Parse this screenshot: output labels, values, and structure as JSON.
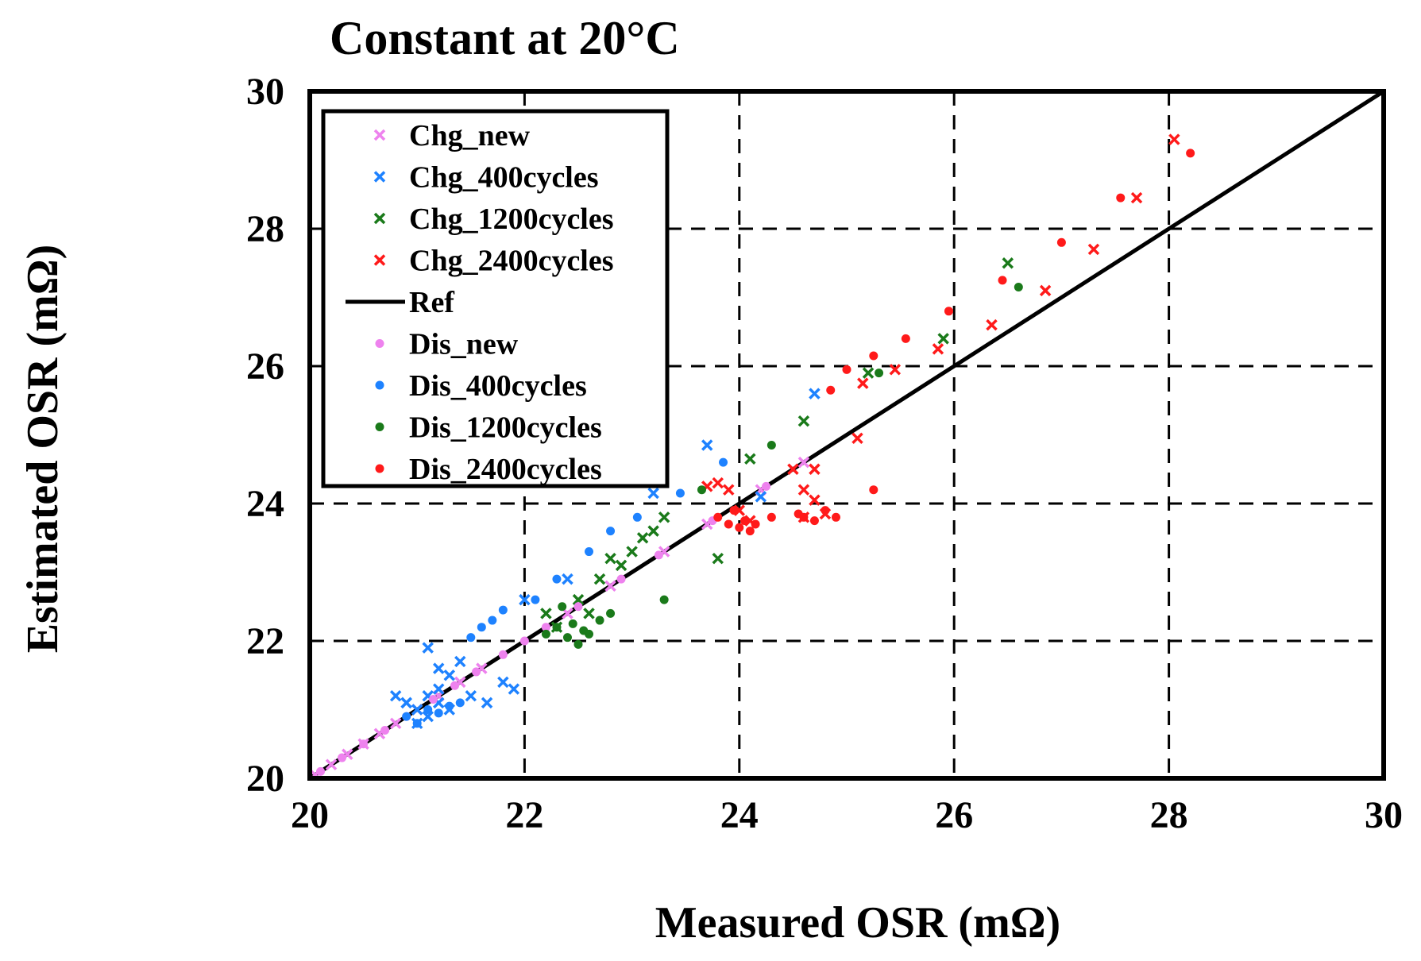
{
  "chart_data": {
    "type": "scatter",
    "title": "Constant at 20°C",
    "xlabel": "Measured OSR (mΩ)",
    "ylabel": "Estimated OSR (mΩ)",
    "xlim": [
      20,
      30
    ],
    "ylim": [
      20,
      30
    ],
    "xticks": [
      20,
      22,
      24,
      26,
      28,
      30
    ],
    "yticks": [
      20,
      22,
      24,
      26,
      28,
      30
    ],
    "grid": true,
    "legend_position": "top-left",
    "colors": {
      "new": "#ee82ee",
      "c400": "#1e82ff",
      "c1200": "#1a7a1a",
      "c2400": "#ff1a1a",
      "ref": "#000000"
    },
    "series": [
      {
        "name": "Chg_new",
        "marker": "x",
        "color": "#ee82ee",
        "x": [
          20.05,
          20.2,
          20.35,
          20.5,
          20.65,
          20.8,
          21.0,
          21.2,
          21.4,
          21.6,
          22.4,
          22.8,
          23.3,
          23.7,
          24.2,
          24.6
        ],
        "y": [
          20.05,
          20.2,
          20.35,
          20.5,
          20.65,
          20.8,
          21.0,
          21.2,
          21.4,
          21.6,
          22.4,
          22.8,
          23.3,
          23.7,
          24.2,
          24.6
        ]
      },
      {
        "name": "Chg_400cycles",
        "marker": "x",
        "color": "#1e82ff",
        "x": [
          20.8,
          20.9,
          21.0,
          21.1,
          21.2,
          21.3,
          21.0,
          21.1,
          21.2,
          20.9,
          21.3,
          21.4,
          21.5,
          21.65,
          21.8,
          21.9,
          22.0,
          22.4,
          23.2,
          23.7,
          24.2,
          24.7,
          21.1,
          21.2
        ],
        "y": [
          21.2,
          21.1,
          21.0,
          21.2,
          21.3,
          21.0,
          20.8,
          20.9,
          21.1,
          21.1,
          21.5,
          21.7,
          21.2,
          21.1,
          21.4,
          21.3,
          22.6,
          22.9,
          24.15,
          24.85,
          24.1,
          25.6,
          21.9,
          21.6
        ]
      },
      {
        "name": "Chg_1200cycles",
        "marker": "x",
        "color": "#1a7a1a",
        "x": [
          22.2,
          22.3,
          22.5,
          22.6,
          22.7,
          22.8,
          22.9,
          23.0,
          23.1,
          23.2,
          23.3,
          23.8,
          24.1,
          24.6,
          25.2,
          25.9,
          26.5
        ],
        "y": [
          22.4,
          22.2,
          22.6,
          22.4,
          22.9,
          23.2,
          23.1,
          23.3,
          23.5,
          23.6,
          23.8,
          23.2,
          24.65,
          25.2,
          25.9,
          26.4,
          27.5
        ]
      },
      {
        "name": "Chg_2400cycles",
        "marker": "x",
        "color": "#ff1a1a",
        "x": [
          23.7,
          23.8,
          23.9,
          24.0,
          24.1,
          24.5,
          24.6,
          24.7,
          24.8,
          24.6,
          24.7,
          25.1,
          25.15,
          25.45,
          25.85,
          26.35,
          26.85,
          27.3,
          27.7,
          28.05
        ],
        "y": [
          24.25,
          24.3,
          24.2,
          23.9,
          23.75,
          24.5,
          24.2,
          24.05,
          23.85,
          23.8,
          24.5,
          24.95,
          25.75,
          25.95,
          26.25,
          26.6,
          27.1,
          27.7,
          28.45,
          29.3
        ]
      },
      {
        "name": "Dis_new",
        "marker": "dot",
        "color": "#ee82ee",
        "x": [
          20.1,
          20.3,
          20.5,
          20.7,
          20.9,
          21.15,
          21.35,
          21.55,
          21.8,
          22.0,
          22.2,
          22.5,
          22.9,
          23.25,
          23.75,
          24.25
        ],
        "y": [
          20.1,
          20.3,
          20.5,
          20.7,
          20.9,
          21.15,
          21.35,
          21.55,
          21.8,
          22.0,
          22.2,
          22.5,
          22.9,
          23.25,
          23.75,
          24.25
        ]
      },
      {
        "name": "Dis_400cycles",
        "marker": "dot",
        "color": "#1e82ff",
        "x": [
          20.9,
          21.0,
          21.1,
          21.2,
          21.3,
          21.4,
          21.5,
          21.6,
          21.7,
          21.8,
          22.1,
          22.3,
          22.6,
          22.8,
          23.05,
          23.45,
          23.85
        ],
        "y": [
          20.9,
          20.8,
          21.0,
          20.95,
          21.05,
          21.1,
          22.05,
          22.2,
          22.3,
          22.45,
          22.6,
          22.9,
          23.3,
          23.6,
          23.8,
          24.15,
          24.6
        ]
      },
      {
        "name": "Dis_1200cycles",
        "marker": "dot",
        "color": "#1a7a1a",
        "x": [
          22.2,
          22.3,
          22.4,
          22.5,
          22.6,
          22.7,
          22.8,
          22.45,
          22.55,
          22.35,
          23.65,
          23.3,
          24.3,
          25.3,
          26.6
        ],
        "y": [
          22.1,
          22.2,
          22.05,
          21.95,
          22.1,
          22.3,
          22.4,
          22.25,
          22.15,
          22.5,
          24.2,
          22.6,
          24.85,
          25.9,
          27.15
        ]
      },
      {
        "name": "Dis_2400cycles",
        "marker": "dot",
        "color": "#ff1a1a",
        "x": [
          23.8,
          23.9,
          24.0,
          24.05,
          24.1,
          24.15,
          23.95,
          24.55,
          24.6,
          24.7,
          24.8,
          24.9,
          24.85,
          25.0,
          25.25,
          25.55,
          25.95,
          26.45,
          27.0,
          27.55,
          28.2,
          24.3,
          25.25
        ],
        "y": [
          23.8,
          23.7,
          23.65,
          23.75,
          23.6,
          23.7,
          23.9,
          23.85,
          23.8,
          23.75,
          23.9,
          23.8,
          25.65,
          25.95,
          26.15,
          26.4,
          26.8,
          27.25,
          27.8,
          28.45,
          29.1,
          23.8,
          24.2
        ]
      }
    ],
    "ref": {
      "name": "Ref",
      "x": [
        20,
        30
      ],
      "y": [
        20,
        30
      ]
    }
  }
}
